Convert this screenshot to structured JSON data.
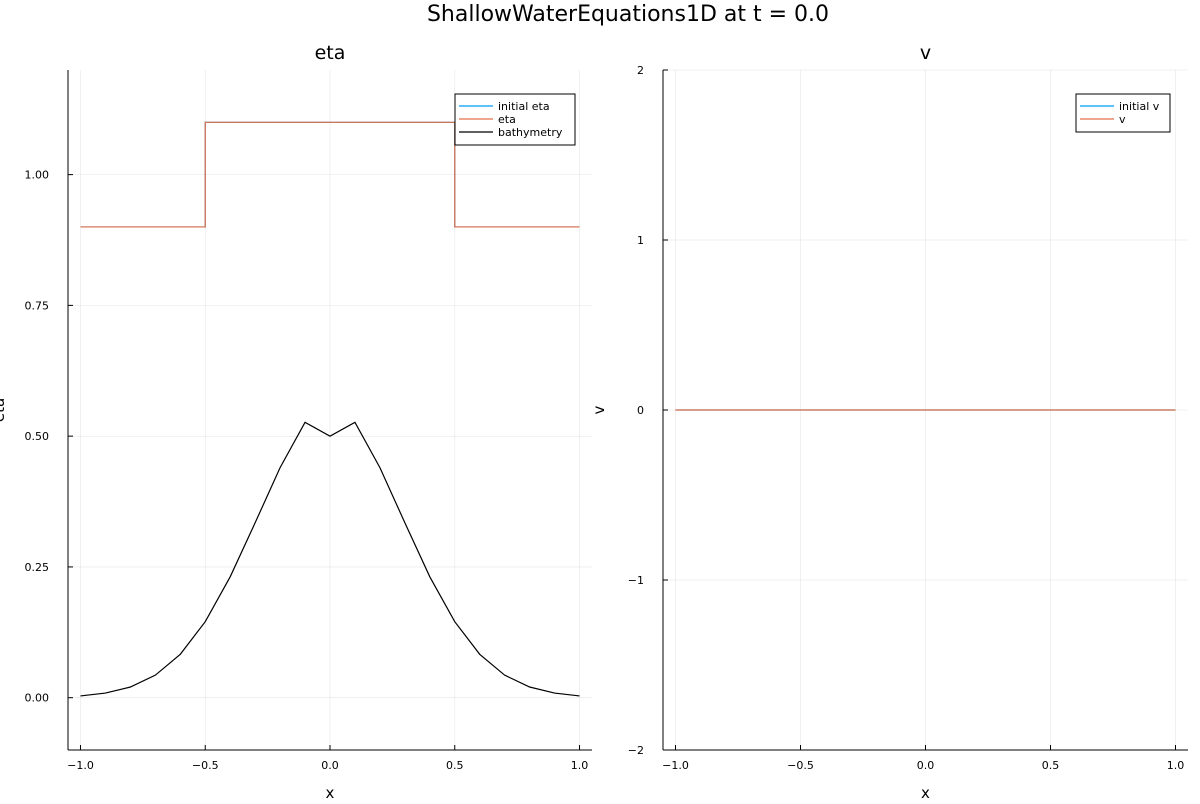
{
  "figure": {
    "title": "ShallowWaterEquations1D at t = 0.0"
  },
  "chart_data": [
    {
      "type": "line",
      "title": "eta",
      "xlabel": "x",
      "ylabel": "eta",
      "xlim": [
        -1.05,
        1.05
      ],
      "ylim": [
        -0.1,
        1.2
      ],
      "xticks": [
        -1.0,
        -0.5,
        0.0,
        0.5,
        1.0
      ],
      "xtick_labels": [
        "−1.0",
        "−0.5",
        "0.0",
        "0.5",
        "1.0"
      ],
      "yticks": [
        0.0,
        0.25,
        0.5,
        0.75,
        1.0
      ],
      "ytick_labels": [
        "0.00",
        "0.25",
        "0.50",
        "0.75",
        "1.00"
      ],
      "grid": true,
      "legend_position": "top-right",
      "series": [
        {
          "name": "initial eta",
          "color": "#009AFA",
          "x": [
            -1.0,
            -0.5,
            -0.5,
            0.5,
            0.5,
            1.0
          ],
          "y": [
            0.9,
            0.9,
            1.1,
            1.1,
            0.9,
            0.9
          ]
        },
        {
          "name": "eta",
          "color": "#E36F47",
          "x": [
            -1.0,
            -0.5,
            -0.5,
            0.5,
            0.5,
            1.0
          ],
          "y": [
            0.9,
            0.9,
            1.1,
            1.1,
            0.9,
            0.9
          ]
        },
        {
          "name": "bathymetry",
          "color": "#000000",
          "x": [
            -1.0,
            -0.9,
            -0.8,
            -0.7,
            -0.6,
            -0.5,
            -0.4,
            -0.3,
            -0.2,
            -0.1,
            0.0,
            0.1,
            0.2,
            0.3,
            0.4,
            0.5,
            0.6,
            0.7,
            0.8,
            0.9,
            1.0
          ],
          "y": [
            0.0034,
            0.0088,
            0.0204,
            0.0431,
            0.083,
            0.1453,
            0.2311,
            0.3344,
            0.4399,
            0.5265,
            0.5,
            0.5265,
            0.4399,
            0.3344,
            0.2311,
            0.1453,
            0.083,
            0.0431,
            0.0204,
            0.0088,
            0.0034
          ]
        }
      ]
    },
    {
      "type": "line",
      "title": "v",
      "xlabel": "x",
      "ylabel": "v",
      "xlim": [
        -1.05,
        1.05
      ],
      "ylim": [
        -2,
        2
      ],
      "xticks": [
        -1.0,
        -0.5,
        0.0,
        0.5,
        1.0
      ],
      "xtick_labels": [
        "−1.0",
        "−0.5",
        "0.0",
        "0.5",
        "1.0"
      ],
      "yticks": [
        -2,
        -1,
        0,
        1,
        2
      ],
      "ytick_labels": [
        "−2",
        "−1",
        "0",
        "1",
        "2"
      ],
      "grid": true,
      "legend_position": "top-right",
      "series": [
        {
          "name": "initial v",
          "color": "#009AFA",
          "x": [
            -1.0,
            1.0
          ],
          "y": [
            0,
            0
          ]
        },
        {
          "name": "v",
          "color": "#E36F47",
          "x": [
            -1.0,
            1.0
          ],
          "y": [
            0,
            0
          ]
        }
      ]
    }
  ]
}
